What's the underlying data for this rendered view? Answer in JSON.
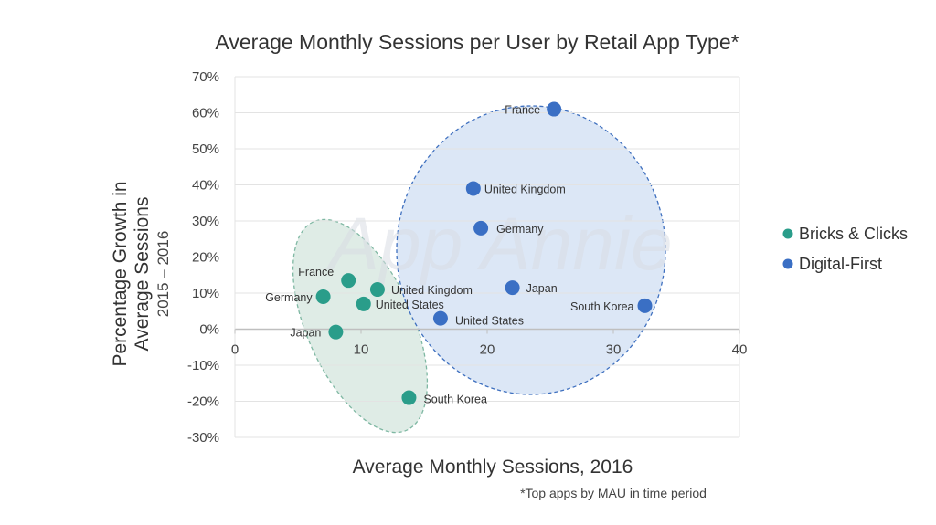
{
  "chart_data": {
    "type": "scatter",
    "title": "Average Monthly Sessions per User by Retail App Type*",
    "xlabel": "Average Monthly Sessions, 2016",
    "ylabel_line1": "Percentage Growth in",
    "ylabel_line2": "Average Sessions",
    "ylabel_line3": "2015 – 2016",
    "xlim": [
      0,
      40
    ],
    "ylim": [
      -30,
      70
    ],
    "x_ticks": [
      "0",
      "10",
      "20",
      "30",
      "40"
    ],
    "y_ticks": [
      "70%",
      "60%",
      "50%",
      "40%",
      "30%",
      "20%",
      "10%",
      "0%",
      "-10%",
      "-20%",
      "-30%"
    ],
    "grid": "horizontal",
    "legend_position": "right",
    "footnote": "*Top apps by MAU in time period",
    "watermark": "App Annie",
    "series": [
      {
        "name": "Bricks & Clicks",
        "color": "#2a9d8a",
        "points": [
          {
            "label": "France",
            "x": 9.0,
            "y": 13.5
          },
          {
            "label": "Germany",
            "x": 7.0,
            "y": 9.0
          },
          {
            "label": "United Kingdom",
            "x": 11.3,
            "y": 11.0
          },
          {
            "label": "United States",
            "x": 10.2,
            "y": 7.0
          },
          {
            "label": "Japan",
            "x": 8.0,
            "y": -0.8
          },
          {
            "label": "South Korea",
            "x": 13.8,
            "y": -19.0
          }
        ]
      },
      {
        "name": "Digital-First",
        "color": "#3a6fc4",
        "points": [
          {
            "label": "France",
            "x": 25.3,
            "y": 61.0
          },
          {
            "label": "United Kingdom",
            "x": 18.9,
            "y": 39.0
          },
          {
            "label": "Germany",
            "x": 19.5,
            "y": 28.0
          },
          {
            "label": "Japan",
            "x": 22.0,
            "y": 11.5
          },
          {
            "label": "United States",
            "x": 16.3,
            "y": 3.0
          },
          {
            "label": "South Korea",
            "x": 32.5,
            "y": 6.5
          }
        ]
      }
    ],
    "clusters": [
      {
        "series": "Bricks & Clicks",
        "fill": "#dfece6",
        "stroke": "#7fb8a3"
      },
      {
        "series": "Digital-First",
        "fill": "#dce7f6",
        "stroke": "#3f70bf"
      }
    ]
  }
}
